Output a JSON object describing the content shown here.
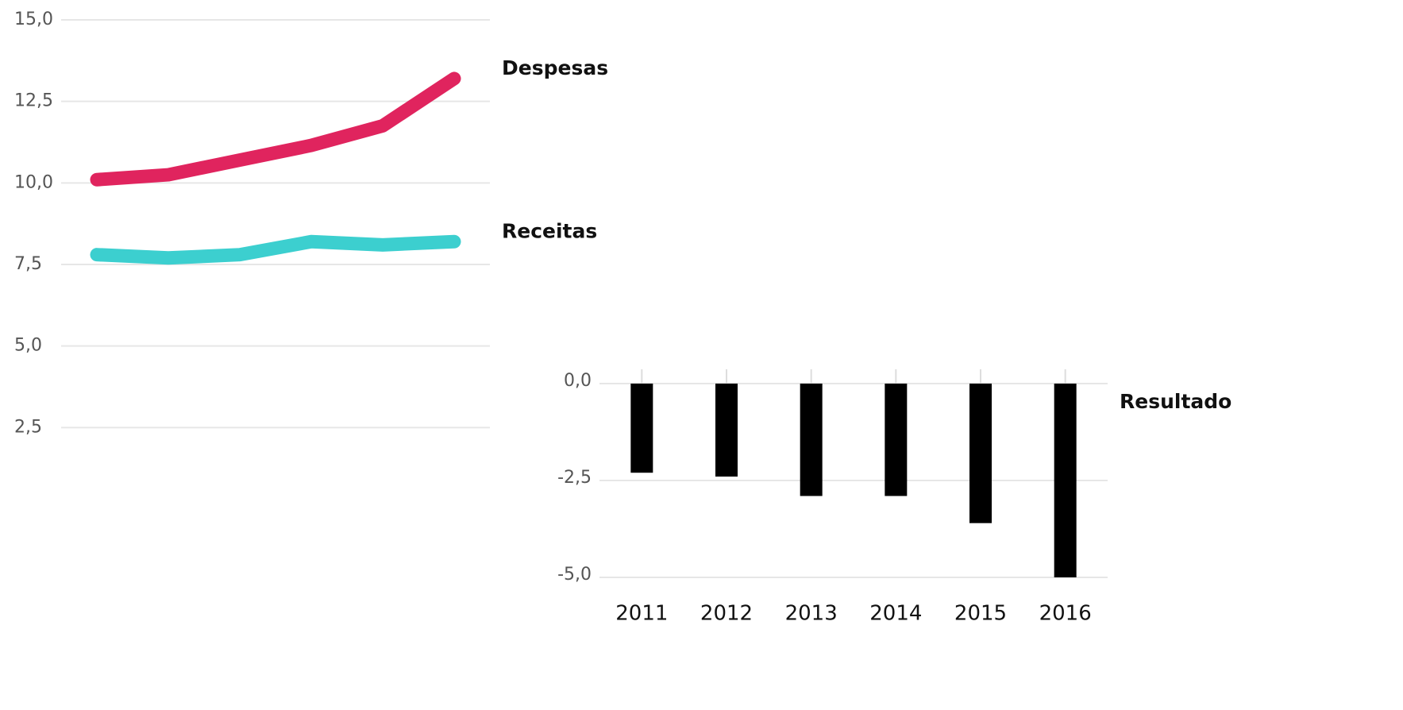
{
  "chart_data": [
    {
      "type": "line",
      "categories": [
        null,
        null,
        null,
        null,
        null,
        null
      ],
      "series": [
        {
          "name": "Despesas",
          "color": "#e0245e",
          "values": [
            10.1,
            10.25,
            10.7,
            11.15,
            11.75,
            13.2
          ]
        },
        {
          "name": "Receitas",
          "color": "#3ccfcf",
          "values": [
            7.8,
            7.7,
            7.8,
            8.2,
            8.1,
            8.2
          ]
        }
      ],
      "ylim": [
        0,
        15
      ],
      "yticks": [
        {
          "value": 2.5,
          "label": "2,5"
        },
        {
          "value": 5,
          "label": "5,0"
        },
        {
          "value": 7.5,
          "label": "7,5"
        },
        {
          "value": 10,
          "label": "10,0"
        },
        {
          "value": 12.5,
          "label": "12,5"
        },
        {
          "value": 15,
          "label": "15,0"
        }
      ],
      "grid": true
    },
    {
      "type": "bar",
      "categories": [
        "2011",
        "2012",
        "2013",
        "2014",
        "2015",
        "2016"
      ],
      "series": [
        {
          "name": "Resultado",
          "color": "#000000",
          "values": [
            -2.3,
            -2.4,
            -2.9,
            -2.9,
            -3.6,
            -5.0
          ]
        }
      ],
      "ylim": [
        -5,
        0
      ],
      "yticks": [
        {
          "value": -5,
          "label": "-5,0"
        },
        {
          "value": -2.5,
          "label": "-2,5"
        },
        {
          "value": 0,
          "label": "0,0"
        }
      ],
      "grid": true
    }
  ]
}
